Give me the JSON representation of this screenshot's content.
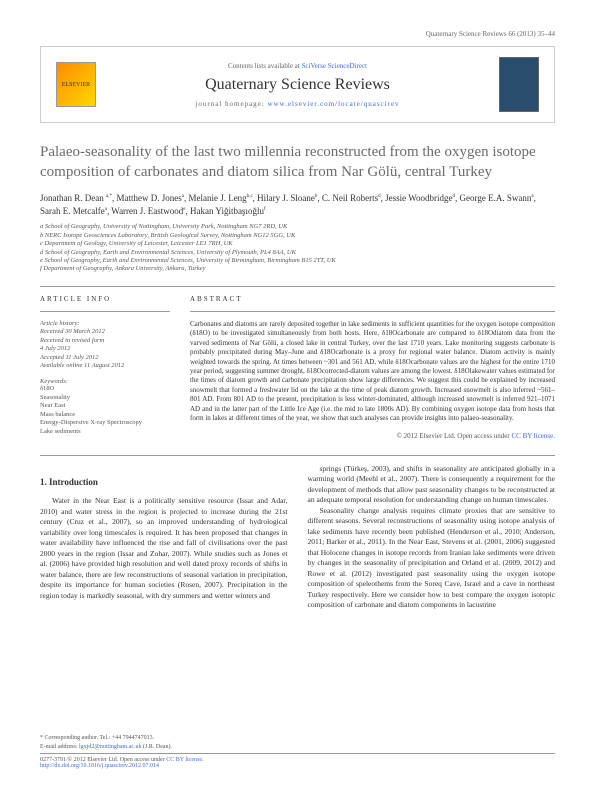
{
  "header": {
    "citation": "Quaternary Science Reviews 66 (2013) 35–44"
  },
  "journal_box": {
    "publisher": "ELSEVIER",
    "contents_text": "Contents lists available at",
    "sciverse": "SciVerse ScienceDirect",
    "journal_name": "Quaternary Science Reviews",
    "homepage_label": "journal homepage:",
    "homepage_url": "www.elsevier.com/locate/quascirev"
  },
  "article": {
    "title": "Palaeo-seasonality of the last two millennia reconstructed from the oxygen isotope composition of carbonates and diatom silica from Nar Gölü, central Turkey",
    "authors_html": "Jonathan R. Dean <sup>a,*</sup>, Matthew D. Jones<sup>a</sup>, Melanie J. Leng<sup>b,c</sup>, Hilary J. Sloane<sup>b</sup>, C. Neil Roberts<sup>d</sup>, Jessie Woodbridge<sup>d</sup>, George E.A. Swann<sup>a</sup>, Sarah E. Metcalfe<sup>a</sup>, Warren J. Eastwood<sup>e</sup>, Hakan Yiğitbaşıoğlu<sup>f</sup>",
    "affiliations": [
      "a School of Geography, University of Nottingham, University Park, Nottingham NG7 2RD, UK",
      "b NERC Isotope Geosciences Laboratory, British Geological Survey, Nottingham NG12 5GG, UK",
      "c Department of Geology, University of Leicester, Leicester LE1 7RH, UK",
      "d School of Geography, Earth and Environmental Sciences, University of Plymouth, PL4 8AA, UK",
      "e School of Geography, Earth and Environmental Sciences, University of Birmingham, Birmingham B15 2TT, UK",
      "f Department of Geography, Ankara University, Ankara, Turkey"
    ]
  },
  "info": {
    "article_info_label": "ARTICLE INFO",
    "history_label": "Article history:",
    "history": [
      "Received 30 March 2012",
      "Received in revised form",
      "4 July 2012",
      "Accepted 11 July 2012",
      "Available online 11 August 2012"
    ],
    "keywords_label": "Keywords:",
    "keywords": [
      "δ18O",
      "Seasonality",
      "Near East",
      "Mass balance",
      "Energy-Dispersive X-ray Spectroscopy",
      "Lake sediments"
    ]
  },
  "abstract": {
    "label": "ABSTRACT",
    "text": "Carbonates and diatoms are rarely deposited together in lake sediments in sufficient quantities for the oxygen isotope composition (δ18O) to be investigated simultaneously from both hosts. Here, δ18Ocarbonate are compared to δ18Odiatom data from the varved sediments of Nar Gölü, a closed lake in central Turkey, over the last 1710 years. Lake monitoring suggests carbonate is probably precipitated during May–June and δ18Ocarbonate is a proxy for regional water balance. Diatom activity is mainly weighted towards the spring. At times between ~301 and 561 AD, while δ18Ocarbonate values are the highest for the entire 1710 year period, suggesting summer drought, δ18Ocorrected-diatom values are among the lowest. δ18Olakewater values estimated for the times of diatom growth and carbonate precipitation show large differences. We suggest this could be explained by increased snowmelt that formed a freshwater lid on the lake at the time of peak diatom growth. Increased snowmelt is also inferred ~561–801 AD. From 801 AD to the present, precipitation is less winter-dominated, although increased snowmelt is inferred 921–1071 AD and in the latter part of the Little Ice Age (i.e. the mid to late 1800s AD). By combining oxygen isotope data from hosts that form in lakes at different times of the year, we show that such analyses can provide insights into palaeo-seasonality.",
    "copyright": "© 2012 Elsevier Ltd.",
    "open_access": "Open access under",
    "cc_license": "CC BY license."
  },
  "body": {
    "section1_heading": "1. Introduction",
    "col1_p1": "Water in the Near East is a politically sensitive resource (Issar and Adar, 2010) and water stress in the region is projected to increase during the 21st century (Cruz et al., 2007), so an improved understanding of hydrological variability over long timescales is required. It has been proposed that changes in water availability have influenced the rise and fall of civilisations over the past 2000 years in the region (Issar and Zohar, 2007). While studies such as Jones et al. (2006) have provided high resolution and well dated proxy records of shifts in water balance, there are few reconstructions of seasonal variation in precipitation, despite its importance for human societies (Rosen, 2007). Precipitation in the region today is markedly seasonal, with dry summers and wetter winters and",
    "col2_p1": "springs (Türkeş, 2003), and shifts in seasonality are anticipated globally in a warming world (Meehl et al., 2007). There is consequently a requirement for the development of methods that allow past seasonality changes to be reconstructed at an adequate temporal resolution for understanding change on human timescales.",
    "col2_p2": "Seasonality change analysis requires climate proxies that are sensitive to different seasons. Several reconstructions of seasonality using isotope analysis of lake sediments have recently been published (Henderson et al., 2010; Anderson, 2011; Barker et al., 2011). In the Near East, Stevens et al. (2001, 2006) suggested that Holocene changes in isotope records from Iranian lake sediments were driven by changes in the seasonality of precipitation and Orland et al. (2009, 2012) and Rowe et al. (2012) investigated past seasonality using the oxygen isotope composition of speleothems from the Soreq Cave, Israel and a cave in northeast Turkey respectively. Here we consider how to best compare the oxygen isotopic composition of carbonate and diatom components in lacustrine"
  },
  "footer": {
    "corresp_label": "* Corresponding author. Tel.: +44 7944747013.",
    "email_label": "E-mail address:",
    "email": "lgxjd2@nottingham.ac.uk",
    "email_name": "(J.R. Dean).",
    "issn": "0277-3791/© 2012 Elsevier Ltd.",
    "open_access": "Open access under",
    "cc": "CC BY license.",
    "doi": "http://dx.doi.org/10.1016/j.quascirev.2012.07.014"
  },
  "colors": {
    "link": "#4169e1",
    "text": "#333333",
    "muted": "#666666",
    "border": "#999999",
    "title_gray": "#6b6b6b"
  }
}
